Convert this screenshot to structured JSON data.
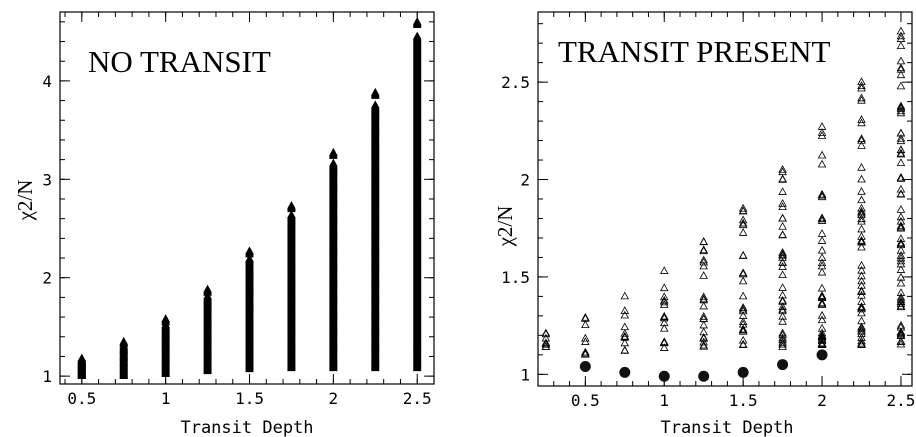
{
  "chart_data": [
    {
      "type": "scatter",
      "annotation": "NO TRANSIT",
      "xlabel": "Transit Depth",
      "ylabel": "χ2/N",
      "xlim": [
        0.37,
        2.6
      ],
      "ylim": [
        0.92,
        4.7
      ],
      "xticks": [
        0.5,
        1,
        1.5,
        2,
        2.5
      ],
      "xtick_labels": [
        "0.5",
        "1",
        "1.5",
        "2",
        "2.5"
      ],
      "yticks": [
        1,
        2,
        3,
        4
      ],
      "ytick_labels": [
        "1",
        "2",
        "3",
        "4"
      ],
      "series": [
        {
          "marker": "triangle-open",
          "columns": [
            {
              "x": 0.5,
              "ymin": 1.0,
              "ymax": 1.18
            },
            {
              "x": 0.75,
              "ymin": 1.0,
              "ymax": 1.35
            },
            {
              "x": 1.0,
              "ymin": 1.02,
              "ymax": 1.58
            },
            {
              "x": 1.25,
              "ymin": 1.05,
              "ymax": 1.88
            },
            {
              "x": 1.5,
              "ymin": 1.07,
              "ymax": 2.27
            },
            {
              "x": 1.75,
              "ymin": 1.08,
              "ymax": 2.73
            },
            {
              "x": 2.0,
              "ymin": 1.08,
              "ymax": 3.27
            },
            {
              "x": 2.25,
              "ymin": 1.08,
              "ymax": 3.88
            },
            {
              "x": 2.5,
              "ymin": 1.08,
              "ymax": 4.6
            }
          ]
        }
      ]
    },
    {
      "type": "scatter",
      "annotation": "TRANSIT PRESENT",
      "xlabel": "Transit Depth",
      "ylabel": "χ2/N",
      "xlim": [
        0.2,
        2.57
      ],
      "ylim": [
        0.94,
        2.86
      ],
      "xticks": [
        0.5,
        1,
        1.5,
        2,
        2.5
      ],
      "xtick_labels": [
        "0.5",
        "1",
        "1.5",
        "2",
        "2.5"
      ],
      "yticks": [
        1,
        1.5,
        2,
        2.5
      ],
      "ytick_labels": [
        "1",
        "1.5",
        "2",
        "2.5"
      ],
      "series": [
        {
          "marker": "triangle-open",
          "columns": [
            {
              "x": 0.25,
              "ymin": 1.14,
              "ymax": 1.21
            },
            {
              "x": 0.5,
              "ymin": 1.1,
              "ymax": 1.29
            },
            {
              "x": 0.75,
              "ymin": 1.12,
              "ymax": 1.4
            },
            {
              "x": 1.0,
              "ymin": 1.13,
              "ymax": 1.53
            },
            {
              "x": 1.25,
              "ymin": 1.14,
              "ymax": 1.68
            },
            {
              "x": 1.5,
              "ymin": 1.14,
              "ymax": 1.85
            },
            {
              "x": 1.75,
              "ymin": 1.14,
              "ymax": 2.05
            },
            {
              "x": 2.0,
              "ymin": 1.15,
              "ymax": 2.27
            },
            {
              "x": 2.25,
              "ymin": 1.15,
              "ymax": 2.5
            },
            {
              "x": 2.5,
              "ymin": 1.15,
              "ymax": 2.76
            }
          ]
        },
        {
          "marker": "filled-circle",
          "points": [
            {
              "x": 0.5,
              "y": 1.04
            },
            {
              "x": 0.75,
              "y": 1.01
            },
            {
              "x": 1.0,
              "y": 0.99
            },
            {
              "x": 1.25,
              "y": 0.99
            },
            {
              "x": 1.5,
              "y": 1.01
            },
            {
              "x": 1.75,
              "y": 1.05
            },
            {
              "x": 2.0,
              "y": 1.1
            }
          ]
        }
      ]
    }
  ]
}
